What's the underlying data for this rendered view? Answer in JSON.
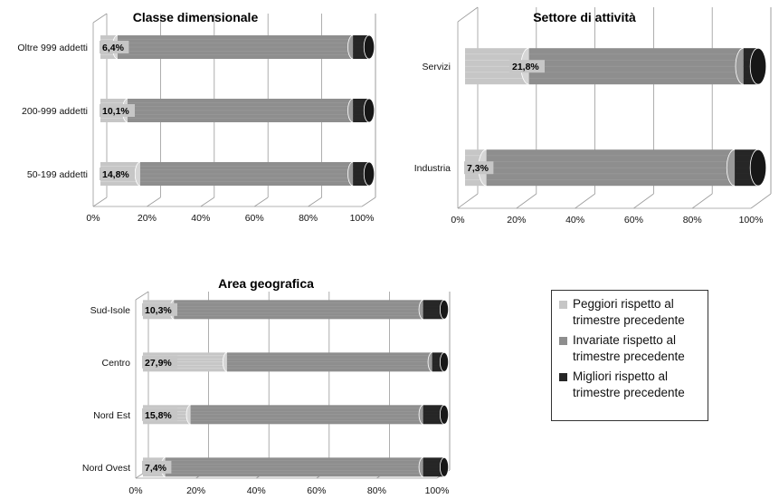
{
  "colors": {
    "peggiori": "#c6c6c6",
    "invariate": "#8e8e8e",
    "migliori": "#262626",
    "axis": "#9a9a9a",
    "label_bg": "#ffffff"
  },
  "legend": [
    {
      "key": "peggiori",
      "text": "Peggiori rispetto al\ntrimestre precedente"
    },
    {
      "key": "invariate",
      "text": "Invariate rispetto al\ntrimestre precedente"
    },
    {
      "key": "migliori",
      "text": "Migliori rispetto al\ntrimestre precedente"
    }
  ],
  "chart_data": [
    {
      "type": "bar",
      "orientation": "horizontal",
      "stacked": "percent",
      "title": "Classe dimensionale",
      "categories": [
        "Oltre 999 addetti",
        "200-999 addetti",
        "50-199 addetti"
      ],
      "series": [
        {
          "name": "Peggiori rispetto al trimestre precedente",
          "values": [
            6.4,
            10.1,
            14.8
          ]
        },
        {
          "name": "Invariate rispetto al trimestre precedente",
          "values": [
            87.6,
            83.9,
            79.2
          ]
        },
        {
          "name": "Migliori rispetto al trimestre precedente",
          "values": [
            6.0,
            6.0,
            6.0
          ]
        }
      ],
      "data_labels": [
        "6,4%",
        "10,1%",
        "14,8%"
      ],
      "x_ticks": [
        "0%",
        "20%",
        "40%",
        "60%",
        "80%",
        "100%"
      ],
      "xlim": [
        0,
        100
      ]
    },
    {
      "type": "bar",
      "orientation": "horizontal",
      "stacked": "percent",
      "title": "Settore di attività",
      "categories": [
        "Servizi",
        "Industria"
      ],
      "series": [
        {
          "name": "Peggiori rispetto al trimestre precedente",
          "values": [
            21.8,
            7.3
          ]
        },
        {
          "name": "Invariate rispetto al trimestre precedente",
          "values": [
            73.2,
            84.7
          ]
        },
        {
          "name": "Migliori rispetto al trimestre precedente",
          "values": [
            5.0,
            8.0
          ]
        }
      ],
      "data_labels": [
        "21,8%",
        "7,3%"
      ],
      "x_ticks": [
        "0%",
        "20%",
        "40%",
        "60%",
        "80%",
        "100%"
      ],
      "xlim": [
        0,
        100
      ]
    },
    {
      "type": "bar",
      "orientation": "horizontal",
      "stacked": "percent",
      "title": "Area geografica",
      "categories": [
        "Sud-Isole",
        "Centro",
        "Nord Est",
        "Nord Ovest"
      ],
      "series": [
        {
          "name": "Peggiori rispetto al trimestre precedente",
          "values": [
            10.3,
            27.9,
            15.8,
            7.4
          ]
        },
        {
          "name": "Invariate rispetto al trimestre precedente",
          "values": [
            82.7,
            68.1,
            77.2,
            85.6
          ]
        },
        {
          "name": "Migliori rispetto al trimestre precedente",
          "values": [
            7.0,
            4.0,
            7.0,
            7.0
          ]
        }
      ],
      "data_labels": [
        "10,3%",
        "27,9%",
        "15,8%",
        "7,4%"
      ],
      "x_ticks": [
        "0%",
        "20%",
        "40%",
        "60%",
        "80%",
        "100%"
      ],
      "xlim": [
        0,
        100
      ]
    }
  ]
}
